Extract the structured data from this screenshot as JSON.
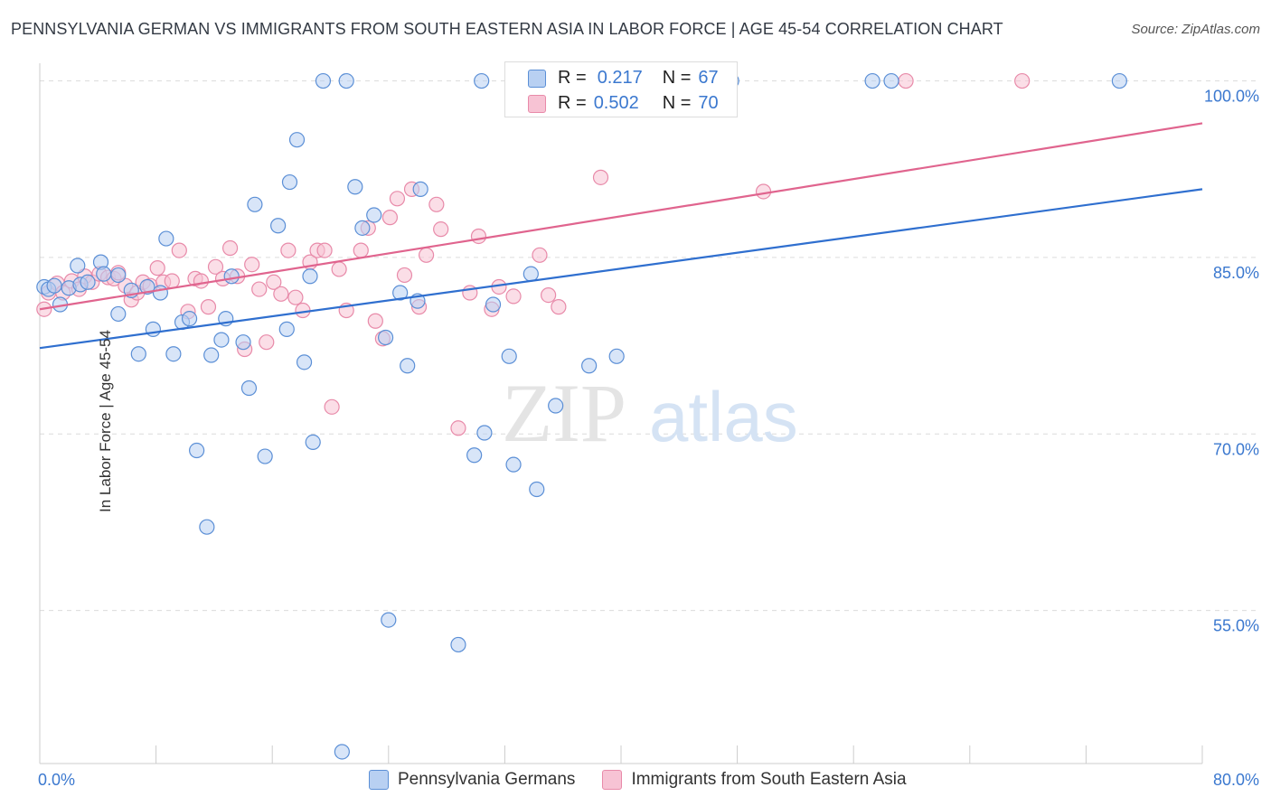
{
  "header": {
    "title": "PENNSYLVANIA GERMAN VS IMMIGRANTS FROM SOUTH EASTERN ASIA IN LABOR FORCE | AGE 45-54 CORRELATION CHART",
    "source": "Source: ZipAtlas.com"
  },
  "watermark": {
    "zip": "ZIP",
    "atlas": "atlas"
  },
  "legend_stats": [
    {
      "r_label": "R =",
      "r_value": "0.217",
      "n_label": "N =",
      "n_value": "67"
    },
    {
      "r_label": "R =",
      "r_value": "0.502",
      "n_label": "N =",
      "n_value": "70"
    }
  ],
  "colors": {
    "blue_fill": "#b8d0f2",
    "blue_stroke": "#5b8fd6",
    "blue_line": "#2f6fcf",
    "pink_fill": "#f7c3d4",
    "pink_stroke": "#e88aa9",
    "pink_line": "#e0648e",
    "axis_text": "#3b78cf",
    "grid": "#dcdcdc"
  },
  "chart_data": {
    "type": "scatter",
    "title": "PENNSYLVANIA GERMAN VS IMMIGRANTS FROM SOUTH EASTERN ASIA IN LABOR FORCE | AGE 45-54 CORRELATION CHART",
    "xlabel": "",
    "ylabel": "In Labor Force | Age 45-54",
    "xlim": [
      0,
      80
    ],
    "ylim": [
      42,
      101.5
    ],
    "x_tick_labels": [
      "0.0%",
      "80.0%"
    ],
    "y_ticks": [
      55,
      70,
      85,
      100
    ],
    "y_tick_labels": [
      "55.0%",
      "70.0%",
      "85.0%",
      "100.0%"
    ],
    "grid": true,
    "legend_position": "bottom",
    "series": [
      {
        "name": "Pennsylvania Germans",
        "color": "#5b8fd6",
        "trend": {
          "x": [
            0,
            80
          ],
          "y": [
            77.3,
            90.8
          ]
        },
        "points": [
          [
            0.3,
            82.5
          ],
          [
            0.6,
            82.3
          ],
          [
            1.0,
            82.6
          ],
          [
            1.4,
            81.0
          ],
          [
            2.0,
            82.4
          ],
          [
            2.6,
            84.3
          ],
          [
            2.8,
            82.7
          ],
          [
            3.3,
            82.9
          ],
          [
            4.2,
            84.6
          ],
          [
            4.4,
            83.6
          ],
          [
            5.4,
            83.5
          ],
          [
            5.4,
            80.2
          ],
          [
            6.3,
            82.2
          ],
          [
            6.8,
            76.8
          ],
          [
            7.4,
            82.5
          ],
          [
            7.8,
            78.9
          ],
          [
            8.3,
            82.0
          ],
          [
            8.7,
            86.6
          ],
          [
            9.2,
            76.8
          ],
          [
            9.8,
            79.5
          ],
          [
            10.3,
            79.8
          ],
          [
            10.8,
            68.6
          ],
          [
            11.5,
            62.1
          ],
          [
            11.8,
            76.7
          ],
          [
            12.5,
            78.0
          ],
          [
            12.8,
            79.8
          ],
          [
            13.2,
            83.4
          ],
          [
            14.0,
            77.8
          ],
          [
            14.4,
            73.9
          ],
          [
            14.8,
            89.5
          ],
          [
            15.5,
            68.1
          ],
          [
            16.4,
            87.7
          ],
          [
            17.0,
            78.9
          ],
          [
            17.2,
            91.4
          ],
          [
            17.7,
            95.0
          ],
          [
            18.2,
            76.1
          ],
          [
            18.6,
            83.4
          ],
          [
            18.8,
            69.3
          ],
          [
            19.5,
            100.0
          ],
          [
            20.8,
            43.0
          ],
          [
            21.1,
            100.0
          ],
          [
            21.7,
            91.0
          ],
          [
            22.2,
            87.5
          ],
          [
            23.0,
            88.6
          ],
          [
            23.8,
            78.2
          ],
          [
            24.0,
            54.2
          ],
          [
            24.8,
            82.0
          ],
          [
            25.3,
            75.8
          ],
          [
            26.0,
            81.3
          ],
          [
            26.2,
            90.8
          ],
          [
            28.8,
            52.1
          ],
          [
            29.9,
            68.2
          ],
          [
            30.4,
            100.0
          ],
          [
            30.6,
            70.1
          ],
          [
            31.2,
            81.0
          ],
          [
            32.3,
            76.6
          ],
          [
            32.6,
            67.4
          ],
          [
            33.8,
            83.6
          ],
          [
            34.2,
            65.3
          ],
          [
            35.5,
            72.4
          ],
          [
            37.4,
            100.0
          ],
          [
            37.8,
            75.8
          ],
          [
            39.7,
            76.6
          ],
          [
            47.6,
            100.0
          ],
          [
            57.3,
            100.0
          ],
          [
            58.6,
            100.0
          ],
          [
            74.3,
            100.0
          ]
        ]
      },
      {
        "name": "Immigrants from South Eastern Asia",
        "color": "#e88aa9",
        "trend": {
          "x": [
            0,
            80
          ],
          "y": [
            80.6,
            96.4
          ]
        },
        "points": [
          [
            0.3,
            80.6
          ],
          [
            0.6,
            82.0
          ],
          [
            1.2,
            82.8
          ],
          [
            1.6,
            82.0
          ],
          [
            2.2,
            83.0
          ],
          [
            2.7,
            82.3
          ],
          [
            3.1,
            83.4
          ],
          [
            3.6,
            82.9
          ],
          [
            4.1,
            83.6
          ],
          [
            4.7,
            83.3
          ],
          [
            5.1,
            83.2
          ],
          [
            5.4,
            83.7
          ],
          [
            5.9,
            82.6
          ],
          [
            6.3,
            81.4
          ],
          [
            6.7,
            82.0
          ],
          [
            7.1,
            82.9
          ],
          [
            7.6,
            82.6
          ],
          [
            8.1,
            84.1
          ],
          [
            8.5,
            82.9
          ],
          [
            9.1,
            83.0
          ],
          [
            9.6,
            85.6
          ],
          [
            10.2,
            80.4
          ],
          [
            10.7,
            83.2
          ],
          [
            11.1,
            83.0
          ],
          [
            11.6,
            80.8
          ],
          [
            12.1,
            84.2
          ],
          [
            12.6,
            83.2
          ],
          [
            13.1,
            85.8
          ],
          [
            13.6,
            83.4
          ],
          [
            14.1,
            77.2
          ],
          [
            14.6,
            84.4
          ],
          [
            15.1,
            82.3
          ],
          [
            15.6,
            77.8
          ],
          [
            16.1,
            82.9
          ],
          [
            16.6,
            81.9
          ],
          [
            17.1,
            85.6
          ],
          [
            17.6,
            81.6
          ],
          [
            18.1,
            80.5
          ],
          [
            18.6,
            84.6
          ],
          [
            19.1,
            85.6
          ],
          [
            19.6,
            85.6
          ],
          [
            20.1,
            72.3
          ],
          [
            20.6,
            84.0
          ],
          [
            21.1,
            80.5
          ],
          [
            22.1,
            85.6
          ],
          [
            22.6,
            87.5
          ],
          [
            23.1,
            79.6
          ],
          [
            23.6,
            78.1
          ],
          [
            24.1,
            88.4
          ],
          [
            24.6,
            90.0
          ],
          [
            25.1,
            83.5
          ],
          [
            25.6,
            90.8
          ],
          [
            26.1,
            80.8
          ],
          [
            26.6,
            85.2
          ],
          [
            27.3,
            89.5
          ],
          [
            27.6,
            87.4
          ],
          [
            28.8,
            70.5
          ],
          [
            29.6,
            82.0
          ],
          [
            30.2,
            86.8
          ],
          [
            31.1,
            80.6
          ],
          [
            31.6,
            82.5
          ],
          [
            32.6,
            81.7
          ],
          [
            34.4,
            85.2
          ],
          [
            35.0,
            81.8
          ],
          [
            35.7,
            80.8
          ],
          [
            37.0,
            100.0
          ],
          [
            38.6,
            91.8
          ],
          [
            49.8,
            90.6
          ],
          [
            59.6,
            100.0
          ],
          [
            67.6,
            100.0
          ]
        ]
      }
    ]
  }
}
